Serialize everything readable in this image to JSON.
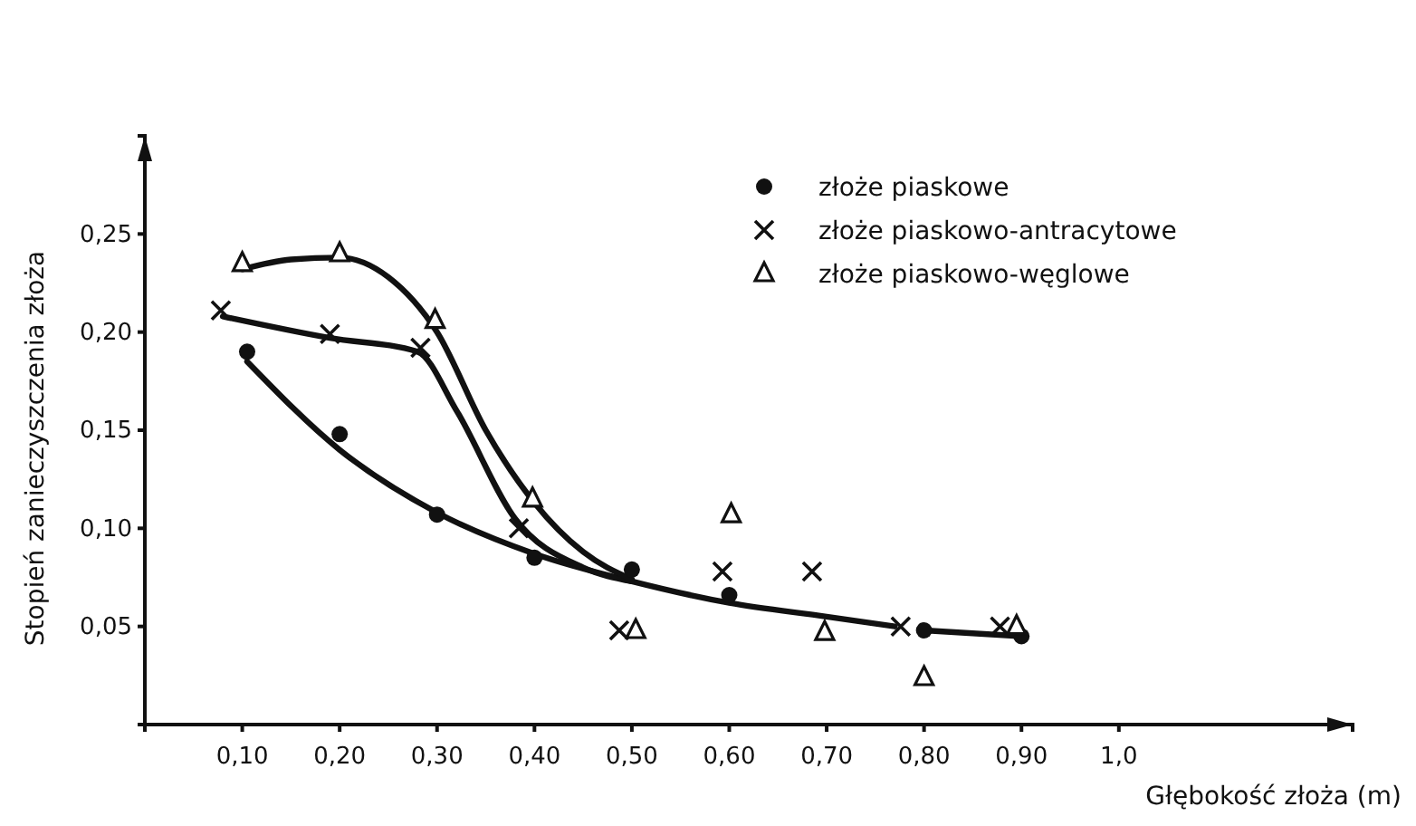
{
  "chart_data": {
    "type": "scatter",
    "xlabel": "Głębokość złoża (m)",
    "ylabel": "Stopień zanieczyszczenia złoża",
    "xlim": [
      0,
      1.24
    ],
    "ylim": [
      0,
      0.3
    ],
    "xticks": [
      {
        "value": 0.1,
        "label": "0,10"
      },
      {
        "value": 0.2,
        "label": "0,20"
      },
      {
        "value": 0.3,
        "label": "0,30"
      },
      {
        "value": 0.4,
        "label": "0,40"
      },
      {
        "value": 0.5,
        "label": "0,50"
      },
      {
        "value": 0.6,
        "label": "0,60"
      },
      {
        "value": 0.7,
        "label": "0,70"
      },
      {
        "value": 0.8,
        "label": "0,80"
      },
      {
        "value": 0.9,
        "label": "0,90"
      },
      {
        "value": 1.0,
        "label": "1,0"
      }
    ],
    "yticks": [
      {
        "value": 0.05,
        "label": "0,05"
      },
      {
        "value": 0.1,
        "label": "0,10"
      },
      {
        "value": 0.15,
        "label": "0,15"
      },
      {
        "value": 0.2,
        "label": "0,20"
      },
      {
        "value": 0.25,
        "label": "0,25"
      }
    ],
    "grid": false,
    "legend": "top right",
    "series": [
      {
        "name": "złoże piaskowe",
        "type": "scatter",
        "marker": "circle",
        "color": "#111111",
        "x": [
          0.105,
          0.2,
          0.3,
          0.4,
          0.5,
          0.6,
          0.8,
          0.9
        ],
        "values": [
          0.19,
          0.148,
          0.107,
          0.085,
          0.079,
          0.066,
          0.048,
          0.045
        ]
      },
      {
        "name": "złoże piaskowo-antracytowe",
        "type": "scatter",
        "marker": "cross",
        "color": "#111111",
        "x": [
          0.078,
          0.19,
          0.283,
          0.384,
          0.487,
          0.593,
          0.685,
          0.776,
          0.878
        ],
        "values": [
          0.211,
          0.199,
          0.192,
          0.1,
          0.048,
          0.078,
          0.078,
          0.05,
          0.05
        ]
      },
      {
        "name": "złoże piaskowo-węglowe",
        "type": "scatter",
        "marker": "triangle",
        "color": "#111111",
        "x": [
          0.1,
          0.2,
          0.298,
          0.398,
          0.504,
          0.602,
          0.698,
          0.8,
          0.895
        ],
        "values": [
          0.235,
          0.24,
          0.206,
          0.115,
          0.048,
          0.107,
          0.047,
          0.024,
          0.05
        ]
      },
      {
        "type": "line",
        "marker": "none",
        "color": "#111111",
        "x": [
          0.105,
          0.2,
          0.3,
          0.4,
          0.5,
          0.6,
          0.7,
          0.77,
          0.78,
          0.8,
          0.9
        ],
        "values": [
          0.185,
          0.14,
          0.108,
          0.087,
          0.073,
          0.062,
          0.055,
          0.05,
          null,
          0.048,
          0.045
        ]
      },
      {
        "type": "line",
        "marker": "none",
        "color": "#111111",
        "x": [
          0.08,
          0.19,
          0.28,
          0.32,
          0.38,
          0.45,
          0.5
        ],
        "values": [
          0.208,
          0.197,
          0.19,
          0.16,
          0.105,
          0.08,
          0.073
        ]
      },
      {
        "type": "line",
        "marker": "none",
        "color": "#111111",
        "x": [
          0.1,
          0.15,
          0.2,
          0.25,
          0.3,
          0.35,
          0.4,
          0.45,
          0.5
        ],
        "values": [
          0.232,
          0.237,
          0.238,
          0.228,
          0.2,
          0.15,
          0.113,
          0.088,
          0.074
        ]
      }
    ]
  }
}
